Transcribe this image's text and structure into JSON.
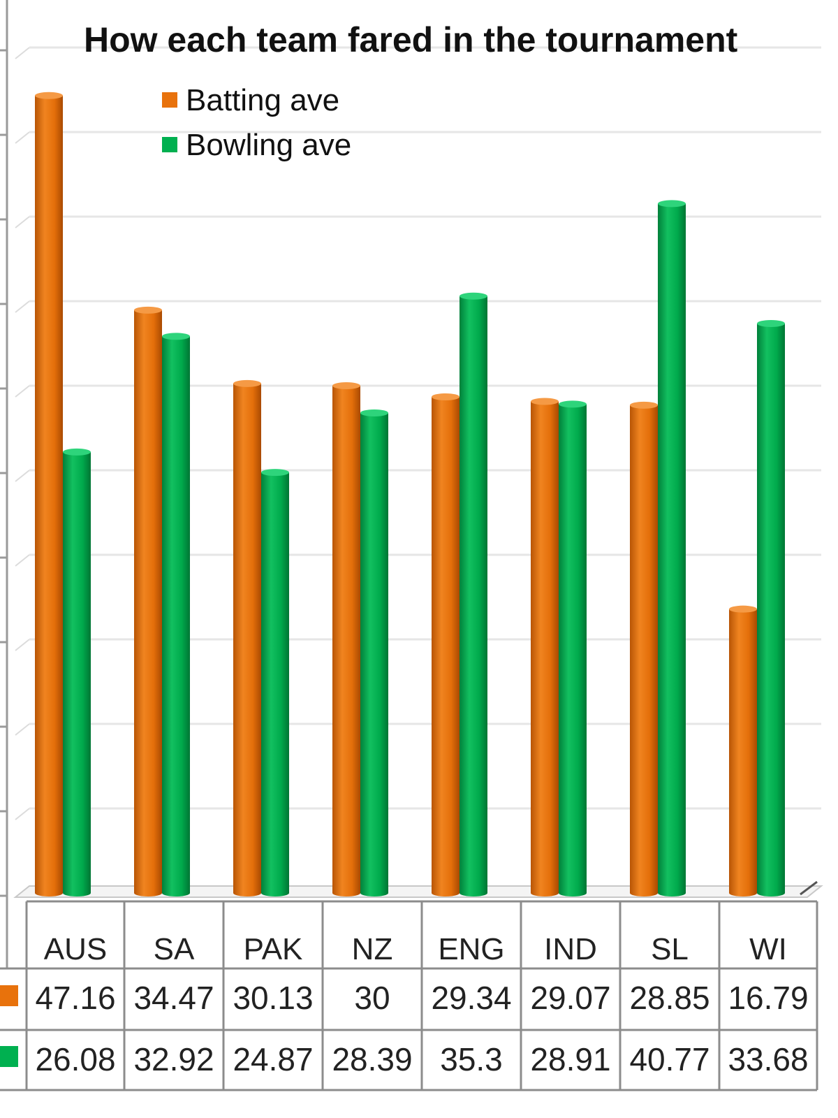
{
  "chart_data": {
    "type": "bar",
    "title": "How each team fared in the tournament",
    "categories": [
      "AUS",
      "SA",
      "PAK",
      "NZ",
      "ENG",
      "IND",
      "SL",
      "WI"
    ],
    "series": [
      {
        "name": "Batting ave",
        "color": "#E8720C",
        "values": [
          47.16,
          34.47,
          30.13,
          30,
          29.34,
          29.07,
          28.85,
          16.79
        ]
      },
      {
        "name": "Bowling ave",
        "color": "#00B050",
        "values": [
          26.08,
          32.92,
          24.87,
          28.39,
          35.3,
          28.91,
          40.77,
          33.68
        ]
      }
    ],
    "value_labels": [
      [
        "47.16",
        "34.47",
        "30.13",
        "30",
        "29.34",
        "29.07",
        "28.85",
        "16.79"
      ],
      [
        "26.08",
        "32.92",
        "24.87",
        "28.39",
        "35.3",
        "28.91",
        "40.77",
        "33.68"
      ]
    ],
    "ylim": [
      0,
      50
    ],
    "grid": true,
    "legend_position": "top-left",
    "data_table": true
  }
}
